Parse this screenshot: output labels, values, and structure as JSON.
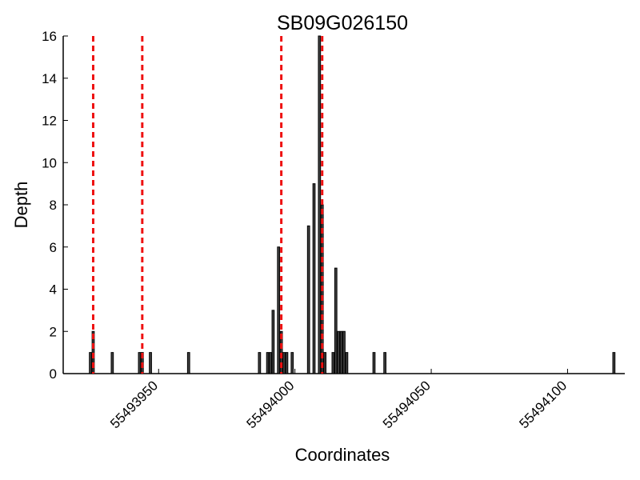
{
  "chart_data": {
    "type": "bar",
    "title": "SB09G026150",
    "xlabel": "Coordinates",
    "ylabel": "Depth",
    "xlim": [
      55493915,
      55494121
    ],
    "ylim": [
      0,
      16
    ],
    "yticks": [
      0,
      2,
      4,
      6,
      8,
      10,
      12,
      14,
      16
    ],
    "xticks": [
      55493950,
      55494000,
      55494050,
      55494100
    ],
    "bar_color": "#404040",
    "marker_color": "#ee1111",
    "grid": false,
    "points": [
      {
        "x": 55493925,
        "y": 1
      },
      {
        "x": 55493926,
        "y": 2
      },
      {
        "x": 55493933,
        "y": 1
      },
      {
        "x": 55493943,
        "y": 1
      },
      {
        "x": 55493944,
        "y": 1
      },
      {
        "x": 55493947,
        "y": 1
      },
      {
        "x": 55493961,
        "y": 1
      },
      {
        "x": 55493987,
        "y": 1
      },
      {
        "x": 55493990,
        "y": 1
      },
      {
        "x": 55493991,
        "y": 1
      },
      {
        "x": 55493992,
        "y": 3
      },
      {
        "x": 55493994,
        "y": 6
      },
      {
        "x": 55493995,
        "y": 2
      },
      {
        "x": 55493996,
        "y": 1
      },
      {
        "x": 55493997,
        "y": 1
      },
      {
        "x": 55493999,
        "y": 1
      },
      {
        "x": 55494005,
        "y": 7
      },
      {
        "x": 55494007,
        "y": 9
      },
      {
        "x": 55494009,
        "y": 16
      },
      {
        "x": 55494010,
        "y": 8
      },
      {
        "x": 55494011,
        "y": 1
      },
      {
        "x": 55494014,
        "y": 1
      },
      {
        "x": 55494015,
        "y": 5
      },
      {
        "x": 55494016,
        "y": 2
      },
      {
        "x": 55494017,
        "y": 2
      },
      {
        "x": 55494018,
        "y": 2
      },
      {
        "x": 55494019,
        "y": 1
      },
      {
        "x": 55494029,
        "y": 1
      },
      {
        "x": 55494033,
        "y": 1
      },
      {
        "x": 55494117,
        "y": 1
      }
    ],
    "reference_lines": [
      55493926,
      55493944,
      55493995,
      55494010
    ]
  }
}
